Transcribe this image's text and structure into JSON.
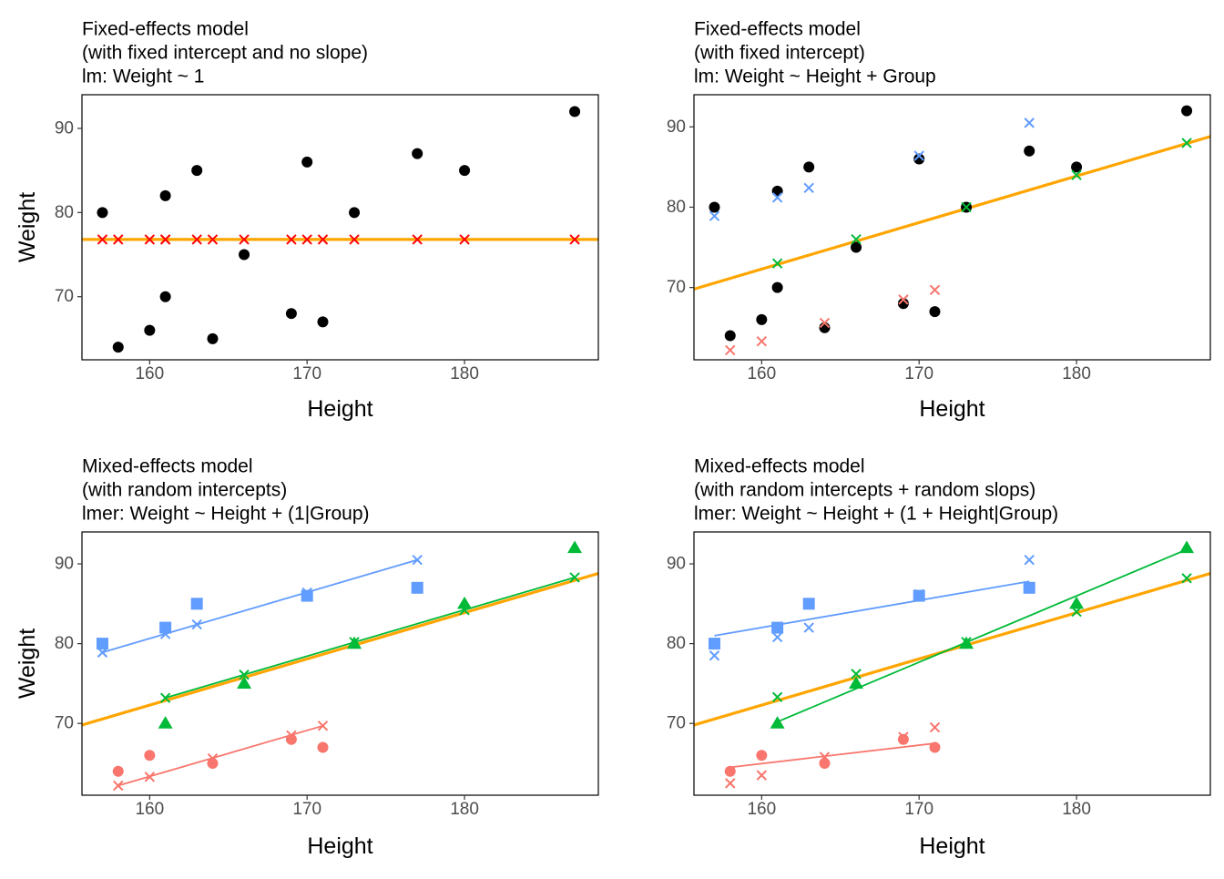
{
  "colors": {
    "orange": "#FFA500",
    "red": "#F8766D",
    "green": "#00BA38",
    "blue": "#619CFF",
    "black": "#000000",
    "fixed_pred_red": "#FF0000"
  },
  "chart_data": [
    {
      "type": "scatter",
      "title_lines": [
        "Fixed-effects model",
        "(with fixed intercept and no slope)",
        "lm: Weight ~ 1"
      ],
      "xlabel": "Height",
      "ylabel": "Weight",
      "xlim": [
        155.7,
        188.5
      ],
      "ylim": [
        62.5,
        94
      ],
      "xticks": [
        160,
        170,
        180
      ],
      "yticks": [
        70,
        80,
        90
      ],
      "grid": false,
      "fit_lines": [
        {
          "color": "orange",
          "width": 3.2,
          "x": [
            155.7,
            188.5
          ],
          "y": [
            76.8,
            76.8
          ]
        }
      ],
      "point_sets": [
        {
          "shape": "circle",
          "color": "black",
          "x": [
            157,
            158,
            160,
            161,
            161,
            163,
            164,
            166,
            169,
            170,
            171,
            173,
            177,
            180,
            187
          ],
          "y": [
            80,
            64,
            66,
            70,
            82,
            85,
            65,
            75,
            68,
            86,
            67,
            80,
            87,
            85,
            92
          ]
        },
        {
          "shape": "x",
          "color": "fixed_pred_red",
          "x": [
            157,
            158,
            160,
            161,
            161,
            163,
            164,
            166,
            169,
            170,
            171,
            173,
            177,
            180,
            187
          ],
          "y": [
            76.8,
            76.8,
            76.8,
            76.8,
            76.8,
            76.8,
            76.8,
            76.8,
            76.8,
            76.8,
            76.8,
            76.8,
            76.8,
            76.8,
            76.8
          ]
        }
      ]
    },
    {
      "type": "scatter",
      "title_lines": [
        "Fixed-effects model",
        "(with fixed intercept)",
        "lm: Weight ~ Height + Group"
      ],
      "xlabel": "Height",
      "ylabel": "",
      "xlim": [
        155.7,
        188.5
      ],
      "ylim": [
        61,
        94
      ],
      "xticks": [
        160,
        170,
        180
      ],
      "yticks": [
        70,
        80,
        90
      ],
      "grid": false,
      "fit_lines": [
        {
          "color": "orange",
          "width": 3.2,
          "x": [
            155.7,
            188.5
          ],
          "y": [
            69.8,
            88.8
          ]
        }
      ],
      "point_sets": [
        {
          "shape": "circle",
          "color": "black",
          "x": [
            157,
            158,
            160,
            161,
            161,
            163,
            164,
            166,
            169,
            170,
            171,
            173,
            177,
            180,
            187
          ],
          "y": [
            80,
            64,
            66,
            70,
            82,
            85,
            65,
            75,
            68,
            86,
            67,
            80,
            87,
            85,
            92
          ]
        },
        {
          "shape": "x",
          "color": "red",
          "x": [
            158,
            160,
            164,
            169,
            171
          ],
          "y": [
            62.2,
            63.3,
            65.6,
            68.5,
            69.7
          ]
        },
        {
          "shape": "x",
          "color": "blue",
          "x": [
            157,
            161,
            163,
            170,
            177
          ],
          "y": [
            78.9,
            81.2,
            82.4,
            86.4,
            90.5
          ]
        },
        {
          "shape": "x",
          "color": "green",
          "x": [
            161,
            166,
            173,
            180,
            187
          ],
          "y": [
            73,
            76,
            80,
            84,
            88
          ]
        }
      ]
    },
    {
      "type": "scatter",
      "title_lines": [
        "Mixed-effects model",
        " (with random intercepts)",
        "lmer: Weight ~ Height + (1|Group)"
      ],
      "xlabel": "Height",
      "ylabel": "Weight",
      "xlim": [
        155.7,
        188.5
      ],
      "ylim": [
        61,
        94
      ],
      "xticks": [
        160,
        170,
        180
      ],
      "yticks": [
        70,
        80,
        90
      ],
      "grid": false,
      "fit_lines": [
        {
          "color": "orange",
          "width": 3.2,
          "x": [
            155.7,
            188.5
          ],
          "y": [
            69.8,
            88.8
          ]
        },
        {
          "color": "red",
          "width": 1.8,
          "x": [
            158,
            171
          ],
          "y": [
            62.2,
            69.7
          ]
        },
        {
          "color": "blue",
          "width": 1.8,
          "x": [
            157,
            177
          ],
          "y": [
            78.9,
            90.5
          ]
        },
        {
          "color": "green",
          "width": 1.8,
          "x": [
            161,
            187
          ],
          "y": [
            73.2,
            88.3
          ]
        }
      ],
      "point_sets": [
        {
          "shape": "circle",
          "color": "red",
          "x": [
            158,
            160,
            164,
            169,
            171
          ],
          "y": [
            64,
            66,
            65,
            68,
            67
          ]
        },
        {
          "shape": "square",
          "color": "blue",
          "x": [
            157,
            161,
            163,
            170,
            177
          ],
          "y": [
            80,
            82,
            85,
            86,
            87
          ]
        },
        {
          "shape": "triangle",
          "color": "green",
          "x": [
            161,
            166,
            173,
            180,
            187
          ],
          "y": [
            70,
            75,
            80,
            85,
            92
          ]
        },
        {
          "shape": "x",
          "color": "red",
          "x": [
            158,
            160,
            164,
            169,
            171
          ],
          "y": [
            62.2,
            63.3,
            65.6,
            68.5,
            69.7
          ]
        },
        {
          "shape": "x",
          "color": "blue",
          "x": [
            157,
            161,
            163,
            170,
            177
          ],
          "y": [
            78.9,
            81.2,
            82.4,
            86.4,
            90.5
          ]
        },
        {
          "shape": "x",
          "color": "green",
          "x": [
            161,
            166,
            173,
            180,
            187
          ],
          "y": [
            73.2,
            76.1,
            80.2,
            84.2,
            88.3
          ]
        }
      ]
    },
    {
      "type": "scatter",
      "title_lines": [
        "Mixed-effects model",
        "(with random intercepts + random slops)",
        "lmer: Weight ~ Height + (1 + Height|Group)"
      ],
      "xlabel": "Height",
      "ylabel": "",
      "xlim": [
        155.7,
        188.5
      ],
      "ylim": [
        61,
        94
      ],
      "xticks": [
        160,
        170,
        180
      ],
      "yticks": [
        70,
        80,
        90
      ],
      "grid": false,
      "fit_lines": [
        {
          "color": "orange",
          "width": 3.2,
          "x": [
            155.7,
            188.5
          ],
          "y": [
            69.8,
            88.8
          ]
        },
        {
          "color": "red",
          "width": 1.8,
          "x": [
            158,
            171
          ],
          "y": [
            64.5,
            67.5
          ]
        },
        {
          "color": "blue",
          "width": 1.8,
          "x": [
            157,
            177
          ],
          "y": [
            81,
            87.8
          ]
        },
        {
          "color": "green",
          "width": 1.8,
          "x": [
            161,
            187
          ],
          "y": [
            70.2,
            91.8
          ]
        }
      ],
      "point_sets": [
        {
          "shape": "circle",
          "color": "red",
          "x": [
            158,
            160,
            164,
            169,
            171
          ],
          "y": [
            64,
            66,
            65,
            68,
            67
          ]
        },
        {
          "shape": "square",
          "color": "blue",
          "x": [
            157,
            161,
            163,
            170,
            177
          ],
          "y": [
            80,
            82,
            85,
            86,
            87
          ]
        },
        {
          "shape": "triangle",
          "color": "green",
          "x": [
            161,
            166,
            173,
            180,
            187
          ],
          "y": [
            70,
            75,
            80,
            85,
            92
          ]
        },
        {
          "shape": "x",
          "color": "red",
          "x": [
            158,
            160,
            164,
            169,
            171
          ],
          "y": [
            62.5,
            63.5,
            65.8,
            68.3,
            69.5
          ]
        },
        {
          "shape": "x",
          "color": "blue",
          "x": [
            157,
            161,
            163,
            170,
            177
          ],
          "y": [
            78.5,
            80.8,
            82,
            86.2,
            90.5
          ]
        },
        {
          "shape": "x",
          "color": "green",
          "x": [
            161,
            166,
            173,
            180,
            187
          ],
          "y": [
            73.3,
            76.2,
            80.2,
            84,
            88.2
          ]
        }
      ]
    }
  ]
}
